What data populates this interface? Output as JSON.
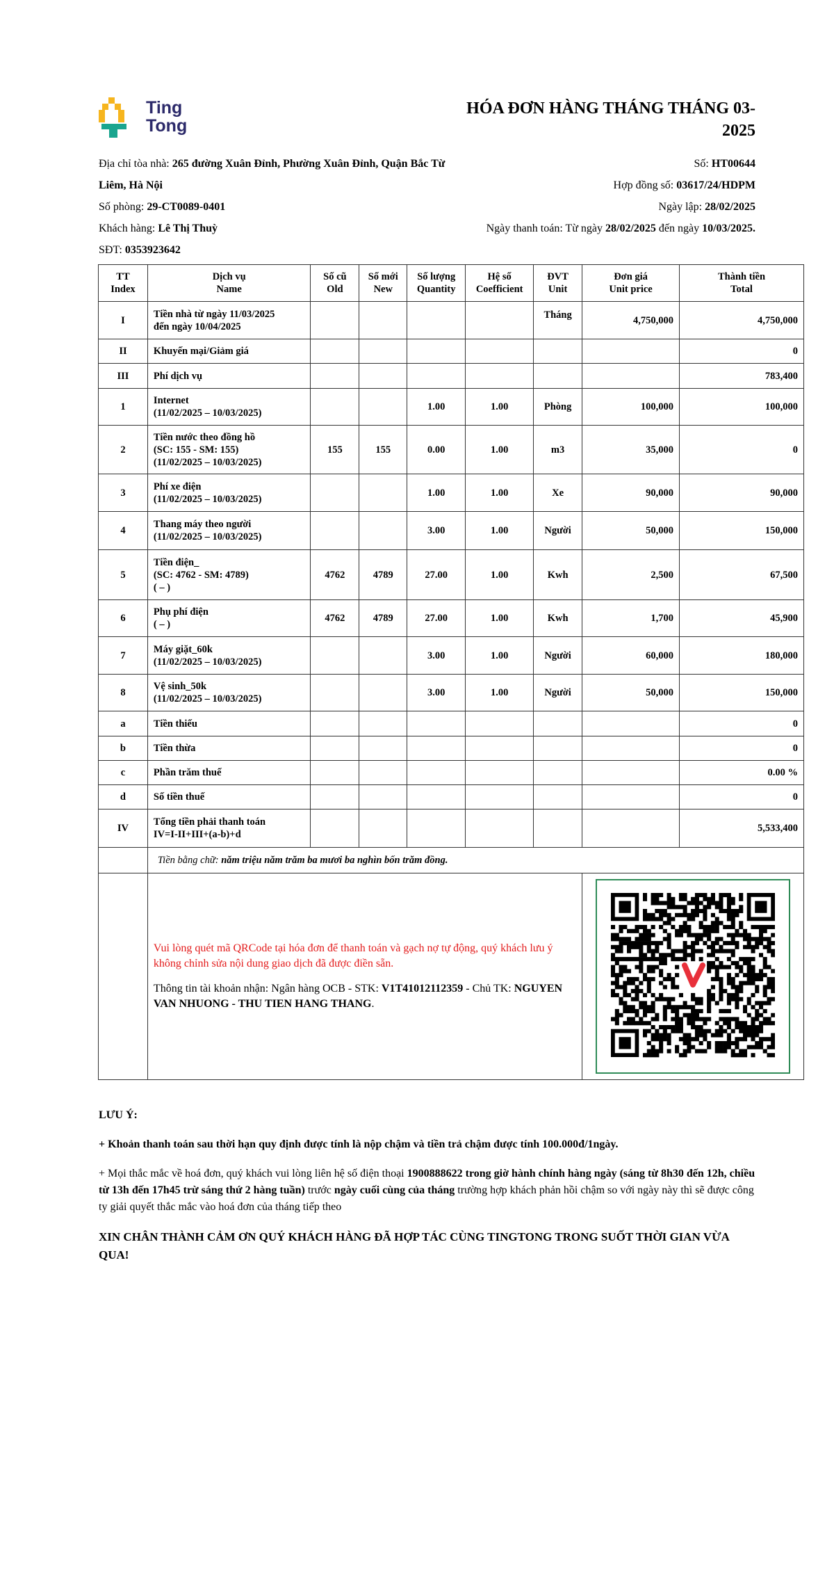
{
  "logo": {
    "line1": "Ting",
    "line2": "Tong",
    "colors": {
      "yellow": "#f6b51e",
      "teal": "#1aa58f",
      "navy": "#2c2a6a"
    }
  },
  "title": "HÓA ĐƠN HÀNG THÁNG THÁNG 03-2025",
  "info": {
    "address_label": "Địa chỉ tòa nhà: ",
    "address": "265 đường Xuân Đỉnh, Phường Xuân Đỉnh, Quận Bắc Từ Liêm, Hà Nội",
    "room_label": "Số phòng: ",
    "room": "29-CT0089-0401",
    "customer_label": "Khách hàng: ",
    "customer": "Lê Thị Thuỳ",
    "phone_label": "SĐT: ",
    "phone": "0353923642",
    "no_label": "Số: ",
    "no": "HT00644",
    "contract_label": "Hợp đồng số: ",
    "contract": "03617/24/HDPM",
    "date_label": "Ngày lập: ",
    "date": "28/02/2025",
    "pay_label": "Ngày thanh toán: Từ ngày ",
    "pay_from": "28/02/2025",
    "pay_mid": " đến ngày ",
    "pay_to": "10/03/2025."
  },
  "table": {
    "headers": [
      [
        "TT",
        "Index"
      ],
      [
        "Dịch vụ",
        "Name"
      ],
      [
        "Số cũ",
        "Old"
      ],
      [
        "Số mới",
        "New"
      ],
      [
        "Số lượng",
        "Quantity"
      ],
      [
        "Hệ số",
        "Coefficient"
      ],
      [
        "ĐVT",
        "Unit"
      ],
      [
        "Đơn giá",
        "Unit price"
      ],
      [
        "Thành tiền",
        "Total"
      ]
    ],
    "rows": [
      {
        "idx": "I",
        "name": [
          "Tiền nhà từ ngày 11/03/2025",
          "đến ngày 10/04/2025"
        ],
        "old": "",
        "new": "",
        "qty": "",
        "coef": "",
        "unit": "Tháng",
        "price": "4,750,000",
        "total": "4,750,000"
      },
      {
        "idx": "II",
        "name": [
          "Khuyến mại/Giảm giá"
        ],
        "old": "",
        "new": "",
        "qty": "",
        "coef": "",
        "unit": "",
        "price": "",
        "total": "0"
      },
      {
        "idx": "III",
        "name": [
          "Phí dịch vụ"
        ],
        "old": "",
        "new": "",
        "qty": "",
        "coef": "",
        "unit": "",
        "price": "",
        "total": "783,400"
      },
      {
        "idx": "1",
        "name": [
          "Internet",
          "(11/02/2025 – 10/03/2025)"
        ],
        "old": "",
        "new": "",
        "qty": "1.00",
        "coef": "1.00",
        "unit": "Phòng",
        "price": "100,000",
        "total": "100,000"
      },
      {
        "idx": "2",
        "name": [
          "Tiền nước theo đồng hồ",
          "(SC: 155 - SM: 155)",
          "(11/02/2025 – 10/03/2025)"
        ],
        "old": "155",
        "new": "155",
        "qty": "0.00",
        "coef": "1.00",
        "unit": "m3",
        "price": "35,000",
        "total": "0"
      },
      {
        "idx": "3",
        "name": [
          "Phí xe điện",
          "(11/02/2025 – 10/03/2025)"
        ],
        "old": "",
        "new": "",
        "qty": "1.00",
        "coef": "1.00",
        "unit": "Xe",
        "price": "90,000",
        "total": "90,000"
      },
      {
        "idx": "4",
        "name": [
          "Thang máy theo người",
          "(11/02/2025 – 10/03/2025)"
        ],
        "old": "",
        "new": "",
        "qty": "3.00",
        "coef": "1.00",
        "unit": "Người",
        "price": "50,000",
        "total": "150,000"
      },
      {
        "idx": "5",
        "name": [
          "Tiền điện_",
          "(SC: 4762 - SM: 4789)",
          "( – )"
        ],
        "old": "4762",
        "new": "4789",
        "qty": "27.00",
        "coef": "1.00",
        "unit": "Kwh",
        "price": "2,500",
        "total": "67,500"
      },
      {
        "idx": "6",
        "name": [
          "Phụ phí điện",
          "( – )"
        ],
        "old": "4762",
        "new": "4789",
        "qty": "27.00",
        "coef": "1.00",
        "unit": "Kwh",
        "price": "1,700",
        "total": "45,900"
      },
      {
        "idx": "7",
        "name": [
          "Máy giặt_60k",
          "(11/02/2025 – 10/03/2025)"
        ],
        "old": "",
        "new": "",
        "qty": "3.00",
        "coef": "1.00",
        "unit": "Người",
        "price": "60,000",
        "total": "180,000"
      },
      {
        "idx": "8",
        "name": [
          "Vệ sinh_50k",
          "(11/02/2025 – 10/03/2025)"
        ],
        "old": "",
        "new": "",
        "qty": "3.00",
        "coef": "1.00",
        "unit": "Người",
        "price": "50,000",
        "total": "150,000"
      },
      {
        "idx": "a",
        "name": [
          "Tiền thiếu"
        ],
        "old": "",
        "new": "",
        "qty": "",
        "coef": "",
        "unit": "",
        "price": "",
        "total": "0"
      },
      {
        "idx": "b",
        "name": [
          "Tiền thừa"
        ],
        "old": "",
        "new": "",
        "qty": "",
        "coef": "",
        "unit": "",
        "price": "",
        "total": "0"
      },
      {
        "idx": "c",
        "name": [
          "Phần trăm thuế"
        ],
        "old": "",
        "new": "",
        "qty": "",
        "coef": "",
        "unit": "",
        "price": "",
        "total": "0.00 %"
      },
      {
        "idx": "d",
        "name": [
          "Số tiền thuế"
        ],
        "old": "",
        "new": "",
        "qty": "",
        "coef": "",
        "unit": "",
        "price": "",
        "total": "0"
      },
      {
        "idx": "IV",
        "name": [
          "Tổng tiền phải thanh toán",
          "IV=I-II+III+(a-b)+d"
        ],
        "old": "",
        "new": "",
        "qty": "",
        "coef": "",
        "unit": "",
        "price": "",
        "total": "5,533,400"
      }
    ],
    "words_label": "Tiền bằng chữ: ",
    "words": "năm triệu năm trăm ba mươi ba nghìn bốn trăm đồng."
  },
  "payment": {
    "notice": "Vui lòng quét mã QRCode tại hóa đơn để thanh toán và gạch nợ tự động, quý khách lưu ý không chỉnh sửa nội dung giao dịch đã được điền sẵn.",
    "account_label": "Thông tin tài khoản nhận: Ngân hàng OCB - STK: ",
    "account": "V1T41012112359",
    "owner_label": " - Chủ TK: ",
    "owner": "NGUYEN VAN NHUONG - THU TIEN HANG THANG",
    "owner_end": ".",
    "qr_icon": "qr-code",
    "qr_border_color": "#2e8b57",
    "notice_color": "#e31b1b"
  },
  "notes": {
    "heading": "LƯU Ý:",
    "late": "+ Khoản thanh toán sau thời hạn quy định được tính là nộp chậm và tiền trả chậm được tính 100.000đ/1ngày.",
    "q1": "+ Mọi thắc mắc về hoá đơn, quý khách vui lòng liên hệ số điện thoại ",
    "q2": "1900888622 trong giờ hành chính hàng ngày (sáng từ 8h30 đến 12h, chiều từ 13h đến 17h45 trừ sáng thứ 2 hàng tuần)",
    "q3": " trước ",
    "q4": "ngày cuối cùng của tháng",
    "q5": " trường hợp khách phản hồi chậm so với ngày này thì sẽ được công ty giải quyết thắc mắc vào hoá đơn của tháng tiếp theo",
    "thanks": "XIN CHÂN THÀNH CẢM ƠN QUÝ KHÁCH HÀNG ĐÃ HỢP TÁC CÙNG TINGTONG TRONG SUỐT THỜI GIAN VỪA QUA!"
  }
}
